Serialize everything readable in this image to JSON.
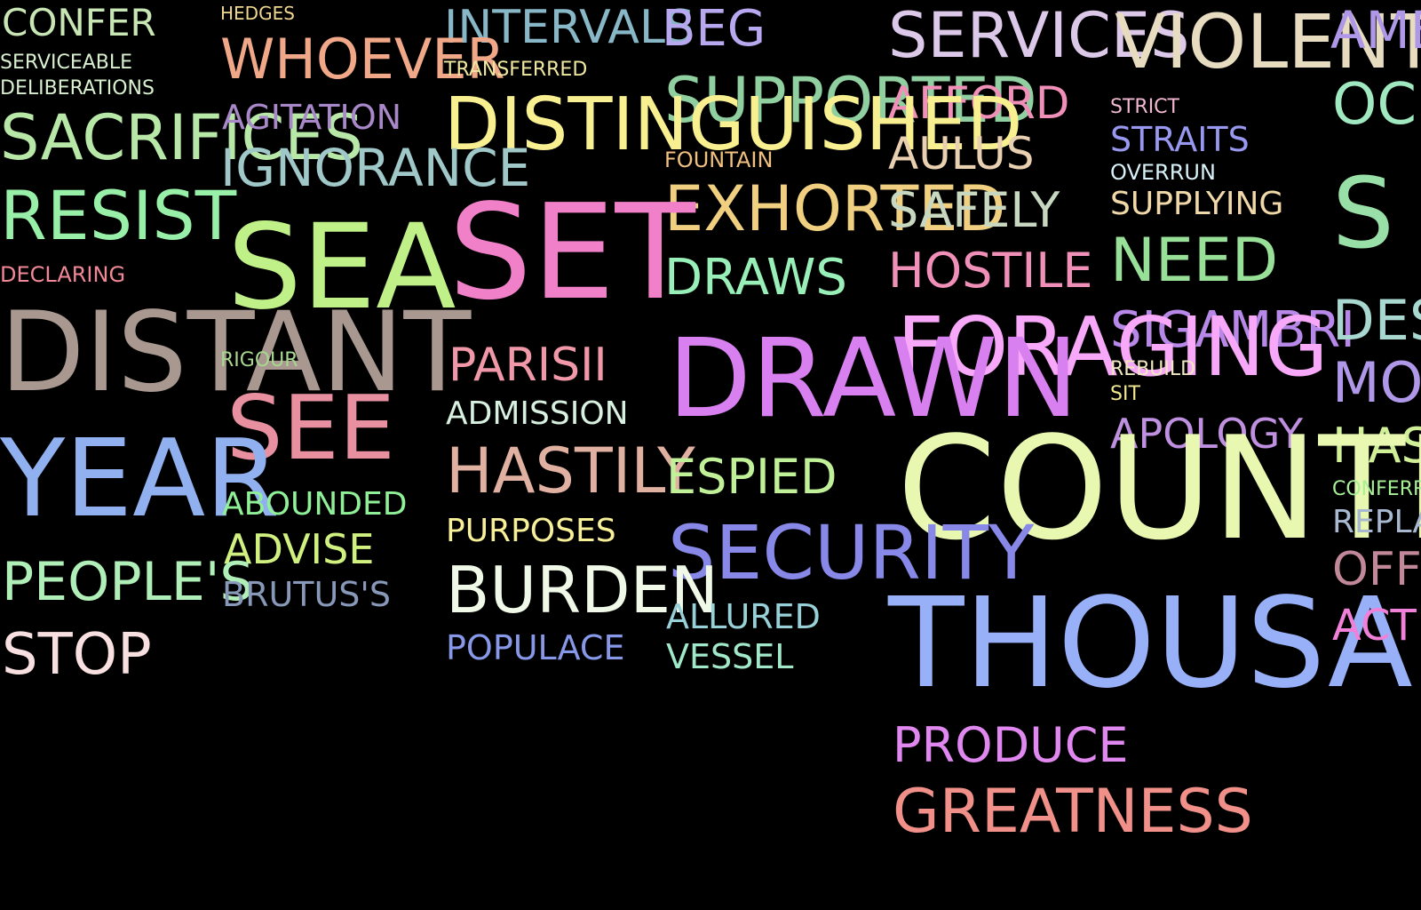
{
  "words": [
    {
      "text": "CONFER",
      "color": "#c8e6b4"
    },
    {
      "text": "HEDGES",
      "color": "#f0d890"
    },
    {
      "text": "INTERVALS",
      "color": "#88b8c8"
    },
    {
      "text": "BEG",
      "color": "#b8a8f0"
    },
    {
      "text": "SERVICES",
      "color": "#dcc8e8"
    },
    {
      "text": "VIOLENT",
      "color": "#e8dcc0"
    },
    {
      "text": "AMB",
      "color": "#b098e8"
    },
    {
      "text": "SERVICEABLE",
      "color": "#d8f0d0"
    },
    {
      "text": "DELIBERATIONS",
      "color": "#d8f0d0"
    },
    {
      "text": "WHOEVER",
      "color": "#f0a888"
    },
    {
      "text": "TRANSFERRED",
      "color": "#f0e8a0"
    },
    {
      "text": "SUPPORTED",
      "color": "#90d0a0"
    },
    {
      "text": "AFFORD",
      "color": "#f090b8"
    },
    {
      "text": "STRICT",
      "color": "#f0b8d0"
    },
    {
      "text": "OC",
      "color": "#a0e8c0"
    },
    {
      "text": "SACRIFICES",
      "color": "#b8e8a8"
    },
    {
      "text": "AGITATION",
      "color": "#a888c8"
    },
    {
      "text": "DISTINGUISHED",
      "color": "#f8f090"
    },
    {
      "text": "STRAITS",
      "color": "#9898f0"
    },
    {
      "text": "IGNORANCE",
      "color": "#a0c8c8"
    },
    {
      "text": "FOUNTAIN",
      "color": "#f0c080"
    },
    {
      "text": "AULUS",
      "color": "#e8d0b0"
    },
    {
      "text": "OVERRUN",
      "color": "#d8f0f8"
    },
    {
      "text": "EXHORTED",
      "color": "#f0d080"
    },
    {
      "text": "SAFELY",
      "color": "#c8d8c0"
    },
    {
      "text": "SUPPLYING",
      "color": "#f0d8a8"
    },
    {
      "text": "S",
      "color": "#98e0a8"
    },
    {
      "text": "RESIST",
      "color": "#98f0a8"
    },
    {
      "text": "SEA",
      "color": "#c0f088"
    },
    {
      "text": "SET",
      "color": "#f080c8"
    },
    {
      "text": "NEED",
      "color": "#98e098"
    },
    {
      "text": "DRAWS",
      "color": "#98f0b8"
    },
    {
      "text": "HOSTILE",
      "color": "#f090b8"
    },
    {
      "text": "DECLARING",
      "color": "#f08898"
    },
    {
      "text": "SIGAMBRI",
      "color": "#b888e8"
    },
    {
      "text": "DES",
      "color": "#a8d8d0"
    },
    {
      "text": "FORAGING",
      "color": "#f8a8f8"
    },
    {
      "text": "DISTANT",
      "color": "#a89890"
    },
    {
      "text": "RIGOUR",
      "color": "#a8d890"
    },
    {
      "text": "PARISII",
      "color": "#f098a8"
    },
    {
      "text": "DRAWN",
      "color": "#d880f0"
    },
    {
      "text": "REBUILD",
      "color": "#f0e8c0"
    },
    {
      "text": "SIT",
      "color": "#f0e890"
    },
    {
      "text": "MOU",
      "color": "#b098e8"
    },
    {
      "text": "SEE",
      "color": "#e890a0"
    },
    {
      "text": "ADMISSION",
      "color": "#d8f0e0"
    },
    {
      "text": "APOLOGY",
      "color": "#c090e0"
    },
    {
      "text": "HAS",
      "color": "#d0f098"
    },
    {
      "text": "YEAR",
      "color": "#90b0f0"
    },
    {
      "text": "HASTILY",
      "color": "#e0b0a0"
    },
    {
      "text": "ESPIED",
      "color": "#c0f098"
    },
    {
      "text": "COUNTRY",
      "color": "#e8f8b0"
    },
    {
      "text": "ABOUNDED",
      "color": "#90f098"
    },
    {
      "text": "CONFERR",
      "color": "#a8f098"
    },
    {
      "text": "REPLA",
      "color": "#a8b8d0"
    },
    {
      "text": "PURPOSES",
      "color": "#f8f098"
    },
    {
      "text": "ADVISE",
      "color": "#d0f080"
    },
    {
      "text": "SECURITY",
      "color": "#8888e8"
    },
    {
      "text": "OFF",
      "color": "#c08898"
    },
    {
      "text": "PEOPLE'S",
      "color": "#b0f0b8"
    },
    {
      "text": "BURDEN",
      "color": "#f0f8e8"
    },
    {
      "text": "BRUTUS'S",
      "color": "#8898b8"
    },
    {
      "text": "ALLURED",
      "color": "#98d0d8"
    },
    {
      "text": "THOUSAND",
      "color": "#98b0f8"
    },
    {
      "text": "ACT",
      "color": "#f080d8"
    },
    {
      "text": "STOP",
      "color": "#f8e0e0"
    },
    {
      "text": "POPULACE",
      "color": "#8898e8"
    },
    {
      "text": "VESSEL",
      "color": "#a0e8c8"
    },
    {
      "text": "PRODUCE",
      "color": "#e088f0"
    },
    {
      "text": "GREATNESS",
      "color": "#f09088"
    }
  ]
}
